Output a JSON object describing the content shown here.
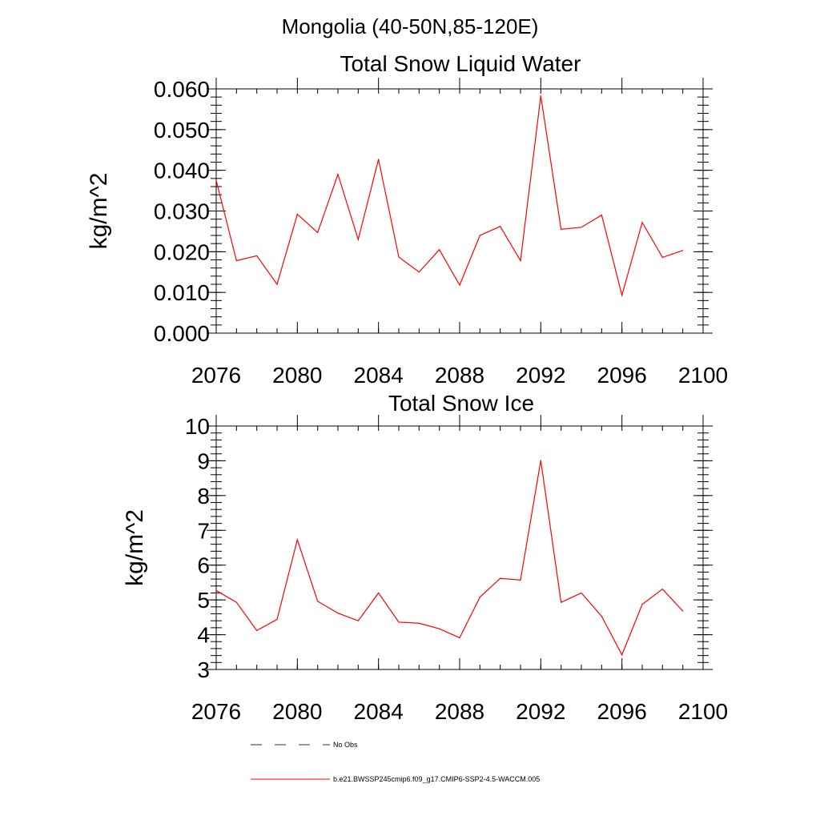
{
  "suptitle": "Mongolia (40-50N,85-120E)",
  "legend": [
    {
      "label": "No Obs",
      "color": "#2b2b6e",
      "dash": "dashed"
    },
    {
      "label": "b.e21.BWSSP245cmip6.f09_g17.CMIP6-SSP2-4.5-WACCM.005",
      "color": "#ff0000",
      "dash": "solid"
    }
  ],
  "chart_data": [
    {
      "type": "line",
      "title": "Total Snow Liquid Water",
      "xlabel": "",
      "ylabel": "kg/m^2",
      "xlim": [
        2076,
        2100
      ],
      "ylim": [
        0,
        0.06
      ],
      "xticks": [
        2076,
        2080,
        2084,
        2088,
        2092,
        2096,
        2100
      ],
      "xticklabels": [
        "2076",
        "2080",
        "2084",
        "2088",
        "2092",
        "2096",
        "2100"
      ],
      "yticks": [
        0,
        0.01,
        0.02,
        0.03,
        0.04,
        0.05,
        0.06
      ],
      "yticklabels": [
        "0.000",
        "0.010",
        "0.020",
        "0.030",
        "0.040",
        "0.050",
        "0.060"
      ],
      "y_minor_step": 0.002,
      "x_minor_step": 1,
      "series": [
        {
          "color": "#ff0000",
          "x": [
            2076,
            2077,
            2078,
            2079,
            2080,
            2081,
            2082,
            2083,
            2084,
            2085,
            2086,
            2087,
            2088,
            2089,
            2090,
            2091,
            2092,
            2093,
            2094,
            2095,
            2096,
            2097,
            2098,
            2099
          ],
          "y": [
            0.0375,
            0.0178,
            0.019,
            0.012,
            0.0292,
            0.0247,
            0.039,
            0.023,
            0.0427,
            0.0187,
            0.015,
            0.0205,
            0.0118,
            0.024,
            0.0262,
            0.0178,
            0.0583,
            0.0255,
            0.026,
            0.029,
            0.0093,
            0.0272,
            0.0186,
            0.0203
          ]
        }
      ]
    },
    {
      "type": "line",
      "title": "Total Snow Ice",
      "xlabel": "",
      "ylabel": "kg/m^2",
      "xlim": [
        2076,
        2100
      ],
      "ylim": [
        3,
        10
      ],
      "xticks": [
        2076,
        2080,
        2084,
        2088,
        2092,
        2096,
        2100
      ],
      "xticklabels": [
        "2076",
        "2080",
        "2084",
        "2088",
        "2092",
        "2096",
        "2100"
      ],
      "yticks": [
        3,
        4,
        5,
        6,
        7,
        8,
        9,
        10
      ],
      "yticklabels": [
        "3",
        "4",
        "5",
        "6",
        "7",
        "8",
        "9",
        "10"
      ],
      "y_minor_step": 0.2,
      "x_minor_step": 1,
      "series": [
        {
          "color": "#ff0000",
          "x": [
            2076,
            2077,
            2078,
            2079,
            2080,
            2081,
            2082,
            2083,
            2084,
            2085,
            2086,
            2087,
            2088,
            2089,
            2090,
            2091,
            2092,
            2093,
            2094,
            2095,
            2096,
            2097,
            2098,
            2099
          ],
          "y": [
            5.27,
            4.93,
            4.12,
            4.44,
            6.73,
            4.96,
            4.62,
            4.4,
            5.2,
            4.36,
            4.33,
            4.17,
            3.91,
            5.08,
            5.62,
            5.57,
            9.01,
            4.93,
            5.2,
            4.53,
            3.42,
            4.87,
            5.31,
            4.68
          ]
        }
      ]
    }
  ]
}
